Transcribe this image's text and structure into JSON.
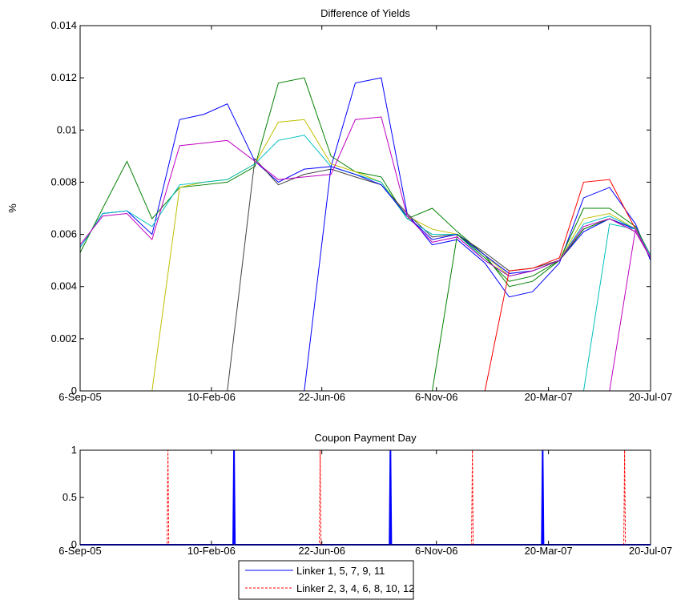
{
  "chart_data": [
    {
      "type": "line",
      "title": "Difference of Yields",
      "y_label": "%",
      "x": [
        "2005-09-06",
        "2005-10-03",
        "2005-11-01",
        "2005-12-01",
        "2006-01-03",
        "2006-02-01",
        "2006-03-01",
        "2006-04-03",
        "2006-05-01",
        "2006-06-01",
        "2006-07-03",
        "2006-08-01",
        "2006-09-01",
        "2006-10-02",
        "2006-11-01",
        "2006-12-01",
        "2007-01-03",
        "2007-02-01",
        "2007-03-01",
        "2007-04-02",
        "2007-05-01",
        "2007-06-01",
        "2007-07-02",
        "2007-07-20"
      ],
      "series": [
        {
          "color": "#0000ff",
          "values": [
            0.0055,
            0.0068,
            0.0069,
            0.006,
            0.0104,
            0.0106,
            0.011,
            0.0088,
            0.008,
            0.0085,
            0.0086,
            0.0118,
            0.012,
            0.0068,
            0.0056,
            0.0058,
            0.0049,
            0.0036,
            0.0038,
            0.0049,
            0.0074,
            0.0078,
            0.0064,
            0.005
          ]
        },
        {
          "color": "#008000",
          "values": [
            0.0053,
            0.007,
            0.0088,
            0.0066,
            0.0078,
            0.0079,
            0.008,
            0.0086,
            0.0118,
            0.012,
            0.009,
            0.0084,
            0.0082,
            0.0066,
            0.007,
            0.0061,
            0.0052,
            0.004,
            0.0042,
            0.005,
            0.007,
            0.007,
            0.0063,
            0.0052
          ]
        },
        {
          "color": "#bfbf00",
          "values": [
            0,
            0,
            0,
            0,
            0.0078,
            0.008,
            0.0081,
            0.0087,
            0.0103,
            0.0104,
            0.0087,
            0.0084,
            0.008,
            0.0067,
            0.0062,
            0.006,
            0.0052,
            0.0044,
            0.0046,
            0.005,
            0.0066,
            0.0068,
            0.0062,
            0.0052
          ]
        },
        {
          "color": "#404040",
          "values": [
            0,
            0,
            0,
            0,
            0,
            0,
            0,
            0.0089,
            0.0079,
            0.0083,
            0.0085,
            0.0082,
            0.0079,
            0.0068,
            0.0059,
            0.006,
            0.0053,
            0.0046,
            0.0047,
            0.005,
            0.0062,
            0.0066,
            0.0062,
            0.0052
          ]
        },
        {
          "color": "#00bfbf",
          "values": [
            0.0055,
            0.0068,
            0.0069,
            0.0063,
            0.0079,
            0.008,
            0.0081,
            0.0087,
            0.0096,
            0.0098,
            0.0086,
            0.0083,
            0.008,
            0.0066,
            0.006,
            0.006,
            0.005,
            0.0044,
            0.0046,
            0.005,
            0.0064,
            0.0067,
            0.0062,
            0.0052
          ]
        },
        {
          "color": "#0000ff",
          "values": [
            0,
            0,
            0,
            0,
            0,
            0,
            0,
            0,
            0,
            0,
            0.0086,
            0.0083,
            0.0079,
            0.0067,
            0.0058,
            0.006,
            0.0052,
            0.0045,
            0.0046,
            0.005,
            0.0061,
            0.0066,
            0.0062,
            0.0052
          ]
        },
        {
          "color": "#008000",
          "values": [
            0,
            0,
            0,
            0,
            0,
            0,
            0,
            0,
            0,
            0,
            0,
            0,
            0,
            0,
            0,
            0.006,
            0.0051,
            0.0042,
            0.0044,
            0.005,
            0.0062,
            0.0066,
            0.0061,
            0.0051
          ]
        },
        {
          "color": "#ff0000",
          "values": [
            0,
            0,
            0,
            0,
            0,
            0,
            0,
            0,
            0,
            0,
            0,
            0,
            0,
            0,
            0,
            0,
            0,
            0.0046,
            0.0047,
            0.0051,
            0.008,
            0.0081,
            0.0062,
            0.0052
          ]
        },
        {
          "color": "#00bfbf",
          "values": [
            0,
            0,
            0,
            0,
            0,
            0,
            0,
            0,
            0,
            0,
            0,
            0,
            0,
            0,
            0,
            0,
            0,
            0,
            0,
            0,
            0,
            0.0064,
            0.0062,
            0.0052
          ]
        },
        {
          "color": "#bf00bf",
          "values": [
            0.0056,
            0.0067,
            0.0068,
            0.0058,
            0.0094,
            0.0095,
            0.0096,
            0.0088,
            0.0081,
            0.0082,
            0.0083,
            0.0104,
            0.0105,
            0.0067,
            0.0057,
            0.0059,
            0.005,
            0.0044,
            0.0046,
            0.005,
            0.0063,
            0.0066,
            0.0061,
            0.0051
          ]
        },
        {
          "color": "#bf00bf",
          "values": [
            0,
            0,
            0,
            0,
            0,
            0,
            0,
            0,
            0,
            0,
            0,
            0,
            0,
            0,
            0,
            0,
            0,
            0,
            0,
            0,
            0,
            0,
            0.0062,
            0.0051
          ]
        }
      ],
      "xlim": [
        "2005-09-06",
        "2007-07-20"
      ],
      "xticks": [
        {
          "value": "2005-09-06",
          "label": "6-Sep-05"
        },
        {
          "value": "2006-02-10",
          "label": "10-Feb-06"
        },
        {
          "value": "2006-06-22",
          "label": "22-Jun-06"
        },
        {
          "value": "2006-11-06",
          "label": "6-Nov-06"
        },
        {
          "value": "2007-03-20",
          "label": "20-Mar-07"
        },
        {
          "value": "2007-07-20",
          "label": "20-Jul-07"
        }
      ],
      "ylim": [
        0,
        0.014
      ],
      "yticks": [
        0,
        0.002,
        0.004,
        0.006,
        0.008,
        0.01,
        0.012,
        0.014
      ]
    },
    {
      "type": "line",
      "title": "Coupon Payment Day",
      "x": [
        "2005-09-06",
        "2005-12-19",
        "2005-12-20",
        "2005-12-21",
        "2006-03-08",
        "2006-03-09",
        "2006-03-10",
        "2006-06-19",
        "2006-06-20",
        "2006-06-21",
        "2006-09-11",
        "2006-09-12",
        "2006-09-13",
        "2006-12-18",
        "2006-12-19",
        "2006-12-20",
        "2007-03-12",
        "2007-03-13",
        "2007-03-14",
        "2007-06-18",
        "2007-06-19",
        "2007-06-20",
        "2007-07-20"
      ],
      "series": [
        {
          "name": "Linker 1, 5, 7, 9, 11",
          "color": "#0000ff",
          "line_style": "solid",
          "values": [
            0,
            0,
            0,
            0,
            0,
            1,
            0,
            0,
            0,
            0,
            0,
            1,
            0,
            0,
            0,
            0,
            0,
            1,
            0,
            0,
            0,
            0,
            0
          ]
        },
        {
          "name": "Linker 2, 3, 4, 6, 8, 10, 12",
          "color": "#ff0000",
          "line_style": "dashed",
          "values": [
            0,
            0,
            1,
            0,
            0,
            0,
            0,
            0,
            1,
            0,
            0,
            0,
            0,
            0,
            1,
            0,
            0,
            0,
            0,
            0,
            1,
            0,
            0
          ]
        }
      ],
      "xlim": [
        "2005-09-06",
        "2007-07-20"
      ],
      "xticks": [
        {
          "value": "2005-09-06",
          "label": "6-Sep-05"
        },
        {
          "value": "2006-02-10",
          "label": "10-Feb-06"
        },
        {
          "value": "2006-06-22",
          "label": "22-Jun-06"
        },
        {
          "value": "2006-11-06",
          "label": "6-Nov-06"
        },
        {
          "value": "2007-03-20",
          "label": "20-Mar-07"
        },
        {
          "value": "2007-07-20",
          "label": "20-Jul-07"
        }
      ],
      "ylim": [
        0,
        1
      ],
      "yticks": [
        0,
        0.5,
        1
      ],
      "legend": "bottom"
    }
  ]
}
